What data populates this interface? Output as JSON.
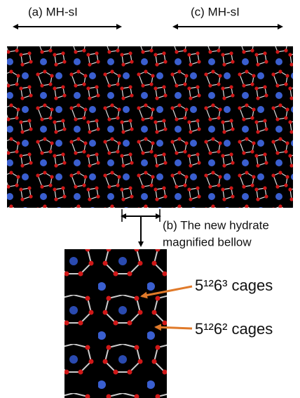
{
  "labels": {
    "a": "(a) MH-sI",
    "c": "(c) MH-sI",
    "b_line1": "(b) The new hydrate",
    "b_line2": "magnified bellow",
    "cage1": "5¹²6³ cages",
    "cage2": "5¹²6² cages"
  }
}
